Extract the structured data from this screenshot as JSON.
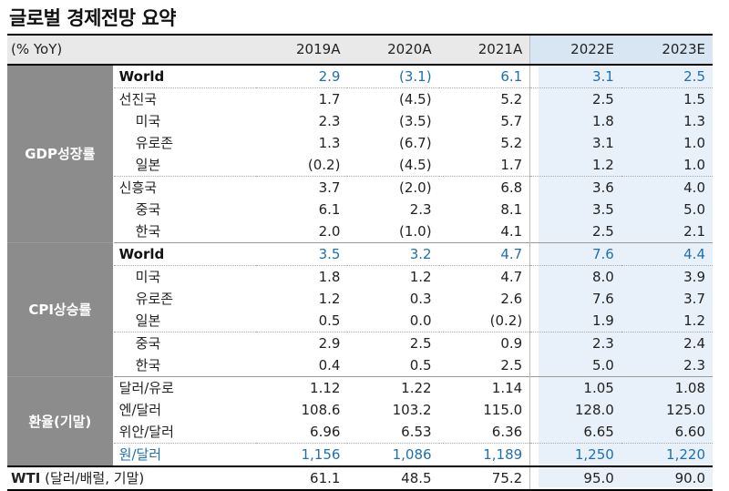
{
  "title": "글로벌 경제전망 요약",
  "header": {
    "unit": "(% YoY)",
    "years": [
      "2019A",
      "2020A",
      "2021A",
      "2022E",
      "2023E"
    ]
  },
  "colors": {
    "category_bg": "#8c8c8c",
    "highlight_text": "#1f6fb2",
    "forecast_bg": "#e8f0f9"
  },
  "gdp": {
    "category": "GDP성장률",
    "rows": [
      {
        "label": "World",
        "values": [
          "2.9",
          "(3.1)",
          "6.1",
          "3.1",
          "2.5"
        ]
      },
      {
        "label": "선진국",
        "values": [
          "1.7",
          "(4.5)",
          "5.2",
          "2.5",
          "1.5"
        ]
      },
      {
        "label": "미국",
        "values": [
          "2.3",
          "(3.5)",
          "5.7",
          "1.8",
          "1.3"
        ]
      },
      {
        "label": "유로존",
        "values": [
          "1.3",
          "(6.7)",
          "5.2",
          "3.1",
          "1.0"
        ]
      },
      {
        "label": "일본",
        "values": [
          "(0.2)",
          "(4.5)",
          "1.7",
          "1.2",
          "1.0"
        ]
      },
      {
        "label": "신흥국",
        "values": [
          "3.7",
          "(2.0)",
          "6.8",
          "3.6",
          "4.0"
        ]
      },
      {
        "label": "중국",
        "values": [
          "6.1",
          "2.3",
          "8.1",
          "3.5",
          "5.0"
        ]
      },
      {
        "label": "한국",
        "values": [
          "2.0",
          "(1.0)",
          "4.1",
          "2.5",
          "2.1"
        ]
      }
    ]
  },
  "cpi": {
    "category": "CPI상승률",
    "rows": [
      {
        "label": "World",
        "values": [
          "3.5",
          "3.2",
          "4.7",
          "7.6",
          "4.4"
        ]
      },
      {
        "label": "미국",
        "values": [
          "1.8",
          "1.2",
          "4.7",
          "8.0",
          "3.9"
        ]
      },
      {
        "label": "유로존",
        "values": [
          "1.2",
          "0.3",
          "2.6",
          "7.6",
          "3.7"
        ]
      },
      {
        "label": "일본",
        "values": [
          "0.5",
          "0.0",
          "(0.2)",
          "1.9",
          "1.2"
        ]
      },
      {
        "label": "중국",
        "values": [
          "2.9",
          "2.5",
          "0.9",
          "2.3",
          "2.4"
        ]
      },
      {
        "label": "한국",
        "values": [
          "0.4",
          "0.5",
          "2.5",
          "5.0",
          "2.3"
        ]
      }
    ]
  },
  "fx": {
    "category": "환율(기말)",
    "rows": [
      {
        "label": "달러/유로",
        "values": [
          "1.12",
          "1.22",
          "1.14",
          "1.05",
          "1.08"
        ]
      },
      {
        "label": "엔/달러",
        "values": [
          "108.6",
          "103.2",
          "115.0",
          "128.0",
          "125.0"
        ]
      },
      {
        "label": "위안/달러",
        "values": [
          "6.96",
          "6.53",
          "6.36",
          "6.65",
          "6.60"
        ]
      },
      {
        "label": "원/달러",
        "values": [
          "1,156",
          "1,086",
          "1,189",
          "1,250",
          "1,220"
        ]
      }
    ]
  },
  "wti": {
    "label_bold": "WTI",
    "label_rest": " (달러/배럴, 기말)",
    "values": [
      "61.1",
      "48.5",
      "75.2",
      "95.0",
      "90.0"
    ]
  }
}
